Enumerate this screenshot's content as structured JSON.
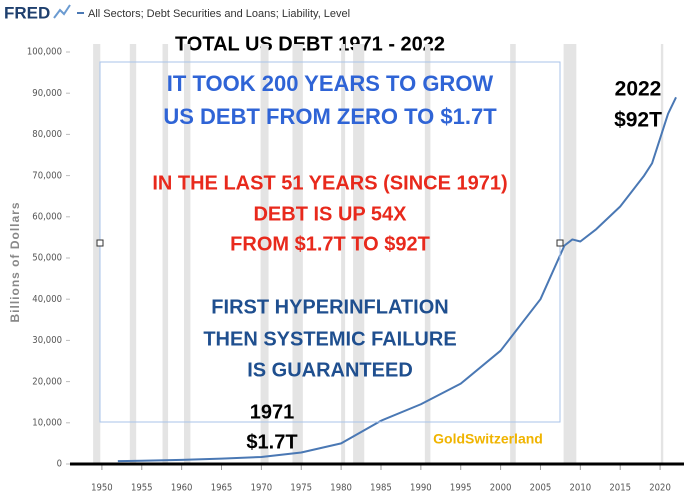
{
  "chart_data": {
    "type": "line",
    "source": "FRED",
    "title": "TOTAL US DEBT 1971 - 2022",
    "ylabel": "Billions of Dollars",
    "x": [
      1952,
      1955,
      1960,
      1965,
      1970,
      1975,
      1980,
      1985,
      1990,
      1995,
      2000,
      2005,
      2008,
      2009,
      2010,
      2012,
      2015,
      2018,
      2019,
      2020,
      2021,
      2022
    ],
    "series": [
      {
        "name": "All Sectors; Debt Securities and Loans; Liability, Level",
        "color": "#4a78b4",
        "values": [
          700,
          800,
          1000,
          1300,
          1700,
          2800,
          5000,
          10500,
          14500,
          19500,
          27500,
          40000,
          53000,
          54500,
          54000,
          57000,
          62500,
          70000,
          73000,
          79000,
          85000,
          89000
        ]
      }
    ],
    "shaded_periods": [
      [
        1948.9,
        1949.8
      ],
      [
        1953.5,
        1954.3
      ],
      [
        1957.6,
        1958.3
      ],
      [
        1960.3,
        1961.1
      ],
      [
        1969.9,
        1970.9
      ],
      [
        1973.9,
        1975.2
      ],
      [
        1980,
        1980.5
      ],
      [
        1981.5,
        1982.9
      ],
      [
        1990.5,
        1991.2
      ],
      [
        2001.2,
        2001.9
      ],
      [
        2007.9,
        2009.5
      ],
      [
        2020.1,
        2020.4
      ]
    ],
    "xlim": [
      1946,
      2023
    ],
    "xticks": [
      1950,
      1955,
      1960,
      1965,
      1970,
      1975,
      1980,
      1985,
      1990,
      1995,
      2000,
      2005,
      2010,
      2015,
      2020
    ],
    "ylim": [
      0,
      100000
    ],
    "yticks": [
      0,
      {
        "value": 10000,
        "label": "10,000"
      },
      {
        "value": 20000,
        "label": "20,000"
      },
      {
        "value": 30000,
        "label": "30,000"
      },
      {
        "value": 40000,
        "label": "40,000"
      },
      {
        "value": 50000,
        "label": "50,000"
      },
      {
        "value": 60000,
        "label": "60,000"
      },
      {
        "value": 70000,
        "label": "70,000"
      },
      {
        "value": 80000,
        "label": "80,000"
      },
      {
        "value": 90000,
        "label": "90,000"
      },
      {
        "value": 100000,
        "label": "100,000"
      }
    ],
    "grid": false,
    "annotations": [
      "IT TOOK 200 YEARS TO GROW",
      "US DEBT FROM ZERO TO $1.7T",
      "IN THE LAST 51 YEARS (SINCE 1971)",
      "DEBT IS UP 54X",
      "FROM $1.7T TO $92T",
      "FIRST HYPERINFLATION",
      "THEN SYSTEMIC FAILURE",
      "IS GUARANTEED",
      "2022",
      "$92T",
      "1971",
      "$1.7T",
      "GoldSwitzerland"
    ]
  }
}
